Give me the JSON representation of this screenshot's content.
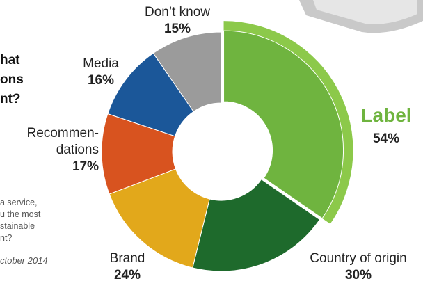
{
  "chart_data": {
    "type": "donut",
    "categories": [
      "Label",
      "Country of origin",
      "Brand",
      "Recommen-dations",
      "Media",
      "Don’t know"
    ],
    "values": [
      54,
      30,
      24,
      17,
      16,
      15
    ],
    "value_labels": [
      "54%",
      "30%",
      "24%",
      "17%",
      "16%",
      "15%"
    ],
    "colors": [
      "#6fb43f",
      "#1e6a2c",
      "#e2a81b",
      "#d8531f",
      "#1b5799",
      "#9b9b9b"
    ]
  },
  "question_fragment": [
    "hat",
    "ons",
    "nt?"
  ],
  "note_fragment": [
    "a service,",
    "u the most",
    "stainable",
    "nt?"
  ],
  "source_fragment": "ctober 2014"
}
